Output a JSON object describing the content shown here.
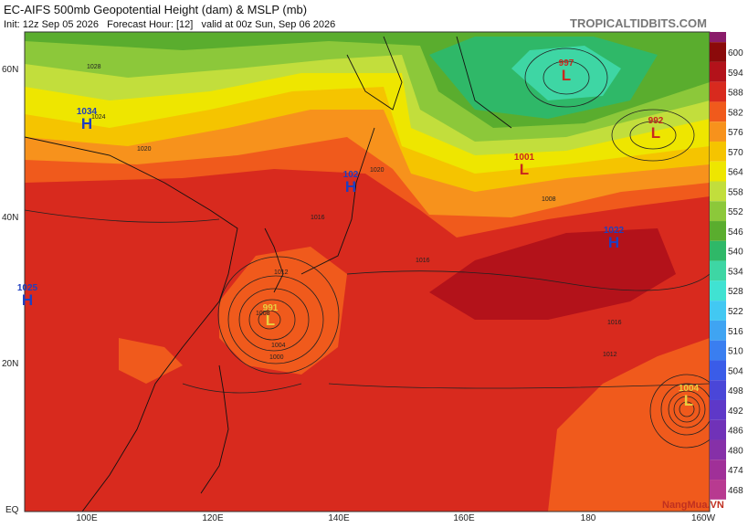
{
  "header": {
    "title": "EC-AIFS 500mb Geopotential Height (dam) & MSLP (mb)",
    "subtitle": "Init: 12z Sep 05 2026   Forecast Hour: [12]   valid at 00z Sun, Sep 06 2026",
    "site": "TROPICALTIDBITS.COM"
  },
  "lat_labels": [
    "60N",
    "40N",
    "20N",
    "EQ"
  ],
  "lon_labels": [
    "100E",
    "120E",
    "140E",
    "160E",
    "180",
    "160W"
  ],
  "colorbar": [
    {
      "value": 600,
      "color": "#8b0a0a"
    },
    {
      "value": 594,
      "color": "#b3121a"
    },
    {
      "value": 588,
      "color": "#d82a1e"
    },
    {
      "value": 582,
      "color": "#f05a1c"
    },
    {
      "value": 576,
      "color": "#f7921c"
    },
    {
      "value": 570,
      "color": "#f5c400"
    },
    {
      "value": 564,
      "color": "#eee600"
    },
    {
      "value": 558,
      "color": "#c2de3c"
    },
    {
      "value": 552,
      "color": "#8cc83a"
    },
    {
      "value": 546,
      "color": "#5aad2e"
    },
    {
      "value": 540,
      "color": "#2fb868"
    },
    {
      "value": 534,
      "color": "#3ed6a4"
    },
    {
      "value": 528,
      "color": "#40e2d2"
    },
    {
      "value": 522,
      "color": "#42c8f2"
    },
    {
      "value": 516,
      "color": "#3fa4f2"
    },
    {
      "value": 510,
      "color": "#3a7ef0"
    },
    {
      "value": 504,
      "color": "#3a5ce8"
    },
    {
      "value": 498,
      "color": "#4a46d8"
    },
    {
      "value": 492,
      "color": "#5e38c8"
    },
    {
      "value": 486,
      "color": "#7032b8"
    },
    {
      "value": 480,
      "color": "#8630a8"
    },
    {
      "value": 474,
      "color": "#a03098"
    },
    {
      "value": 468,
      "color": "#b83a90"
    }
  ],
  "centers": [
    {
      "letter": "H",
      "value": "1034"
    },
    {
      "letter": "H",
      "value": "102"
    },
    {
      "letter": "H",
      "value": "1022"
    },
    {
      "letter": "H",
      "value": "1025"
    },
    {
      "letter": "L",
      "value": "997"
    },
    {
      "letter": "L",
      "value": "992"
    },
    {
      "letter": "L",
      "value": "1001"
    },
    {
      "letter": "L",
      "value": "991"
    },
    {
      "letter": "L",
      "value": "1004"
    }
  ],
  "isobar_labels": [
    "1028",
    "1024",
    "1020",
    "1016",
    "1012",
    "1008",
    "1004",
    "1000",
    "1016",
    "1020",
    "1016",
    "1012",
    "1008"
  ],
  "watermark": "NangMua.VN"
}
